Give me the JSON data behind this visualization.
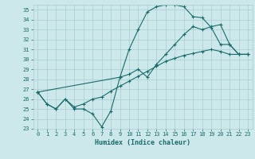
{
  "xlabel": "Humidex (Indice chaleur)",
  "xlim": [
    -0.5,
    23.5
  ],
  "ylim": [
    23,
    35.5
  ],
  "yticks": [
    23,
    24,
    25,
    26,
    27,
    28,
    29,
    30,
    31,
    32,
    33,
    34,
    35
  ],
  "xticks": [
    0,
    1,
    2,
    3,
    4,
    5,
    6,
    7,
    8,
    9,
    10,
    11,
    12,
    13,
    14,
    15,
    16,
    17,
    18,
    19,
    20,
    21,
    22,
    23
  ],
  "bg_color": "#cce8ea",
  "grid_color": "#aacdd0",
  "line_color": "#1a6b6b",
  "line1_x": [
    0,
    1,
    2,
    3,
    4,
    5,
    6,
    7,
    8,
    9,
    10,
    11,
    12,
    13,
    14,
    15,
    16,
    17,
    18,
    19,
    20,
    21,
    22,
    23
  ],
  "line1_y": [
    26.7,
    25.5,
    25.0,
    26.0,
    25.0,
    25.0,
    24.5,
    23.2,
    24.8,
    28.2,
    31.0,
    33.0,
    34.8,
    35.3,
    35.5,
    35.5,
    35.3,
    34.3,
    34.2,
    33.2,
    31.5,
    31.5,
    30.5,
    30.5
  ],
  "line2_x": [
    0,
    9,
    10,
    11,
    12,
    13,
    14,
    15,
    16,
    17,
    18,
    19,
    20,
    21,
    22,
    23
  ],
  "line2_y": [
    26.7,
    28.2,
    28.5,
    29.0,
    28.2,
    29.5,
    30.5,
    31.5,
    32.5,
    33.3,
    33.0,
    33.3,
    33.5,
    31.5,
    30.5,
    30.5
  ],
  "line3_x": [
    0,
    1,
    2,
    3,
    4,
    5,
    6,
    7,
    8,
    9,
    10,
    11,
    12,
    13,
    14,
    15,
    16,
    17,
    18,
    19,
    20,
    21,
    22,
    23
  ],
  "line3_y": [
    26.7,
    25.5,
    25.0,
    26.0,
    25.2,
    25.5,
    26.0,
    26.2,
    26.8,
    27.3,
    27.8,
    28.3,
    28.8,
    29.3,
    29.8,
    30.1,
    30.4,
    30.6,
    30.8,
    31.0,
    30.8,
    30.5,
    30.5,
    30.5
  ]
}
